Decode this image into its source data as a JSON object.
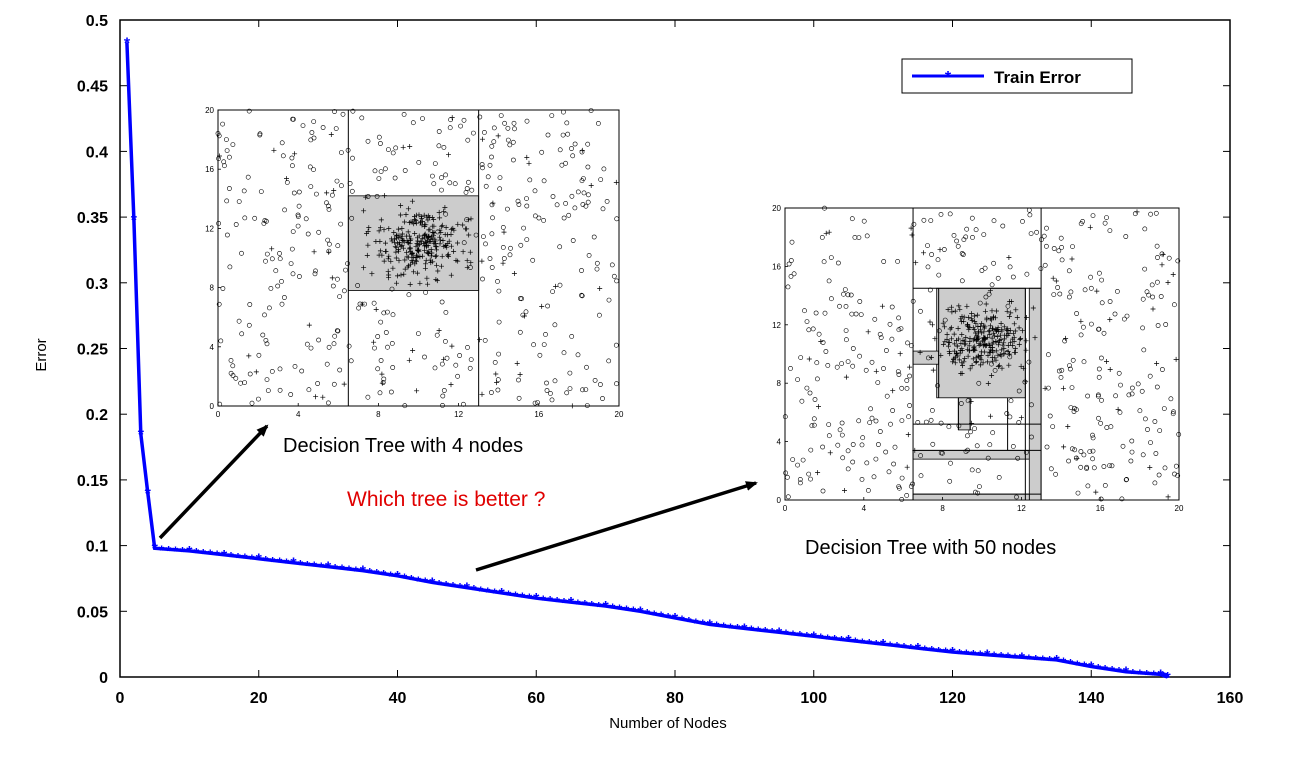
{
  "chart_data": [
    {
      "type": "line",
      "title": "",
      "xlabel": "Number of Nodes",
      "ylabel": "Error",
      "xlim": [
        0,
        160
      ],
      "ylim": [
        0,
        0.5
      ],
      "xticks": [
        "0",
        "20",
        "40",
        "60",
        "80",
        "100",
        "120",
        "140",
        "160"
      ],
      "yticks": [
        "0",
        "0.05",
        "0.1",
        "0.15",
        "0.2",
        "0.25",
        "0.3",
        "0.35",
        "0.4",
        "0.45",
        "0.5"
      ],
      "legend": {
        "position": "top-right",
        "entries": [
          "Train Error"
        ]
      },
      "grid": false,
      "series": [
        {
          "name": "Train Error",
          "color": "#0000ff",
          "x": [
            1,
            2,
            3,
            4,
            5,
            10,
            15,
            20,
            25,
            30,
            35,
            40,
            45,
            50,
            55,
            60,
            65,
            70,
            75,
            80,
            85,
            90,
            95,
            100,
            105,
            110,
            115,
            120,
            125,
            130,
            135,
            140,
            145,
            150,
            151
          ],
          "y": [
            0.483,
            0.348,
            0.185,
            0.14,
            0.098,
            0.096,
            0.093,
            0.09,
            0.087,
            0.084,
            0.081,
            0.077,
            0.072,
            0.068,
            0.064,
            0.06,
            0.057,
            0.054,
            0.05,
            0.045,
            0.04,
            0.037,
            0.034,
            0.031,
            0.028,
            0.025,
            0.022,
            0.019,
            0.017,
            0.015,
            0.013,
            0.008,
            0.004,
            0.002,
            0.0
          ]
        }
      ]
    },
    {
      "type": "scatter",
      "title": "Decision Tree with 4 nodes",
      "xlim": [
        0,
        20
      ],
      "ylim": [
        0,
        20
      ],
      "xticks": [
        "0",
        "4",
        "8",
        "12",
        "16",
        "20"
      ],
      "yticks": [
        "0",
        "4",
        "8",
        "12",
        "16",
        "20"
      ],
      "regions": [
        {
          "x": [
            6.5,
            13
          ],
          "y": [
            7.8,
            14.2
          ],
          "class": "+"
        }
      ],
      "splits_x": [
        6.5,
        13
      ],
      "splits_y": [
        7.8,
        14.2
      ]
    },
    {
      "type": "scatter",
      "title": "Decision Tree with 50 nodes",
      "xlim": [
        0,
        20
      ],
      "ylim": [
        0,
        20
      ],
      "xticks": [
        "0",
        "4",
        "8",
        "12",
        "16",
        "20"
      ],
      "yticks": [
        "0",
        "4",
        "8",
        "12",
        "16",
        "20"
      ],
      "regions": [
        {
          "x": [
            7.7,
            12.2
          ],
          "y": [
            7.0,
            14.5
          ],
          "class": "+"
        },
        {
          "x": [
            6.5,
            13
          ],
          "y": [
            2.8,
            3.4
          ],
          "class": "+"
        },
        {
          "x": [
            12.4,
            13
          ],
          "y": [
            0,
            14.5
          ],
          "class": "+"
        },
        {
          "x": [
            6.5,
            12.4
          ],
          "y": [
            0,
            0.4
          ],
          "class": "+"
        },
        {
          "x": [
            6.5,
            7.8
          ],
          "y": [
            9.3,
            10.2
          ],
          "class": "+"
        },
        {
          "x": [
            8.8,
            9.4
          ],
          "y": [
            4.8,
            7.0
          ],
          "class": "+"
        }
      ]
    }
  ],
  "annotations": {
    "question": "Which tree is better ?",
    "question_color": "#e00000",
    "caption_small": "Decision Tree with 4 nodes",
    "caption_large": "Decision Tree with 50 nodes"
  }
}
